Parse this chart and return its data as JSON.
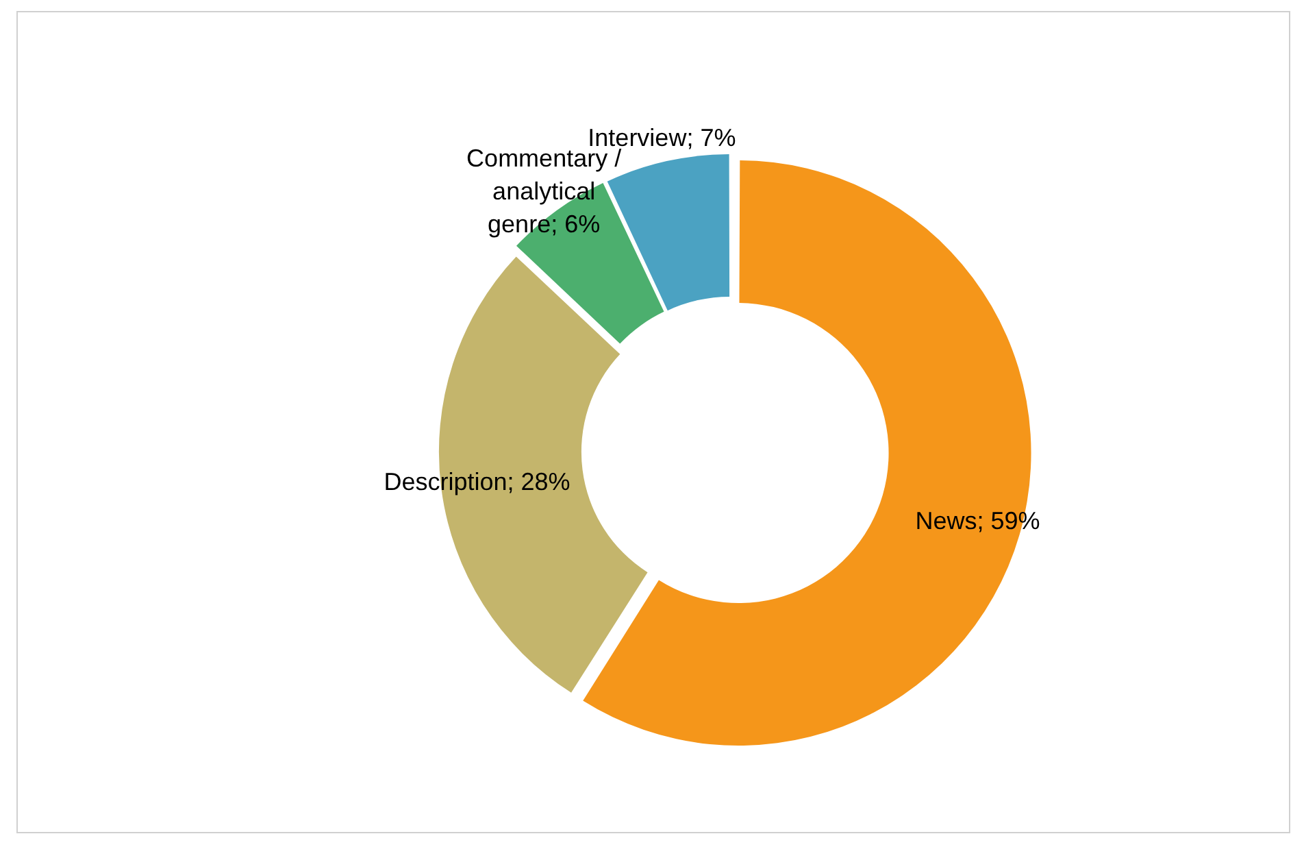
{
  "chart_data": {
    "type": "donut",
    "categories": [
      "News",
      "Description",
      "Commentary / analytical genre",
      "Interview"
    ],
    "values": [
      59,
      28,
      6,
      7
    ],
    "colors": [
      "#f5961a",
      "#c4b56c",
      "#4caf6e",
      "#4ba2c2"
    ],
    "value_labels": [
      "59%",
      "28%",
      "6%",
      "7%"
    ],
    "legend": false
  }
}
